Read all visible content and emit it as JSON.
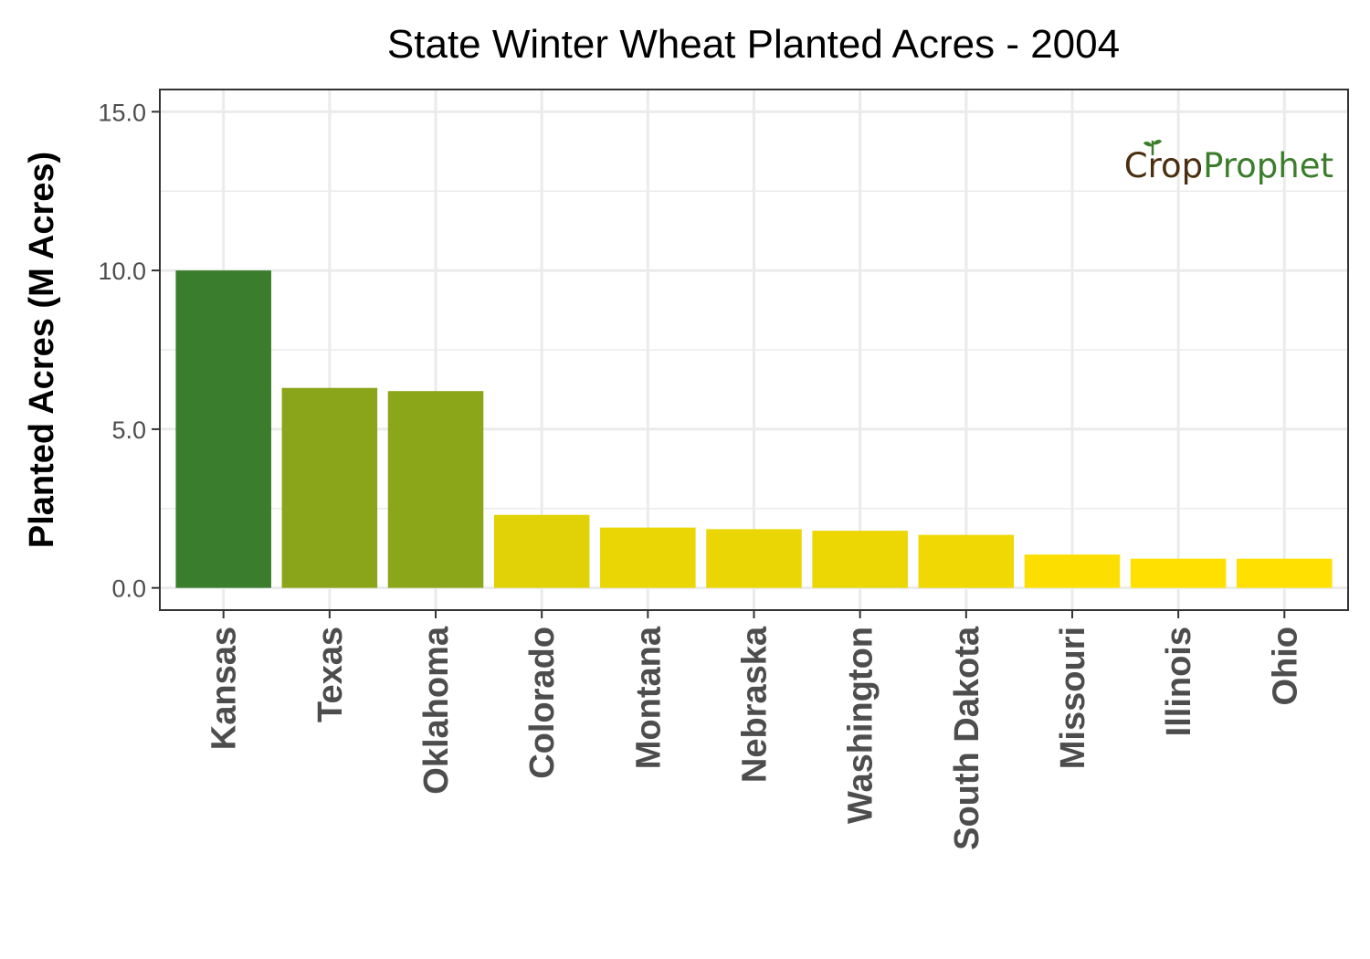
{
  "chart_data": {
    "type": "bar",
    "title": "State Winter Wheat Planted Acres - 2004",
    "xlabel": "",
    "ylabel": "Planted Acres (M Acres)",
    "categories": [
      "Kansas",
      "Texas",
      "Oklahoma",
      "Colorado",
      "Montana",
      "Nebraska",
      "Washington",
      "South Dakota",
      "Missouri",
      "Illinois",
      "Ohio"
    ],
    "values": [
      10.0,
      6.3,
      6.2,
      2.3,
      1.9,
      1.85,
      1.8,
      1.67,
      1.05,
      0.92,
      0.92
    ],
    "ylim": [
      -0.7,
      15.7
    ],
    "yticks": [
      0,
      5,
      10,
      15
    ],
    "ytick_labels": [
      "0.0",
      "5.0",
      "10.0",
      "15.0"
    ],
    "grid": true,
    "legend": "none",
    "colors": {
      "gradient_low": "#ffe000",
      "gradient_high": "#3a7d2c",
      "panel_border": "#333333",
      "grid": "#ebebeb"
    }
  },
  "watermark": {
    "part1": "Crop",
    "part2": "Prophet",
    "color1": "#4a2e0f",
    "color2": "#3b7d2b",
    "icon": "sprout-icon"
  }
}
